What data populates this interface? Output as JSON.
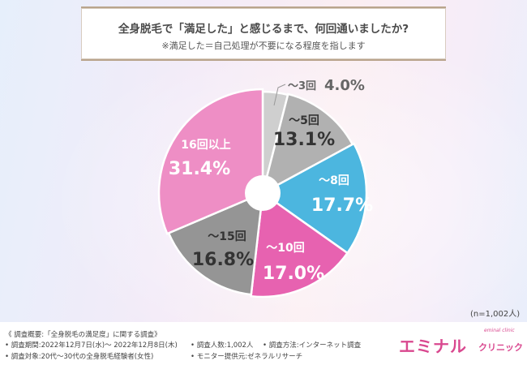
{
  "header": {
    "title": "全身脱毛で「満足した」と感じるまで、何回通いましたか?",
    "subtitle": "※満足した＝自己処理が不要になる程度を指します"
  },
  "chart_data": {
    "type": "pie",
    "donut_hole": true,
    "start_angle_deg": 0,
    "direction": "clockwise",
    "slices": [
      {
        "label": "〜3回",
        "value": 4.0,
        "value_text": "4.0%",
        "color": "#cfcfcf",
        "text_color": "#555555"
      },
      {
        "label": "〜5回",
        "value": 13.1,
        "value_text": "13.1%",
        "color": "#b1b1b1",
        "text_color": "#333333"
      },
      {
        "label": "〜8回",
        "value": 17.7,
        "value_text": "17.7%",
        "color": "#4cb6df",
        "text_color": "#ffffff"
      },
      {
        "label": "〜10回",
        "value": 17.0,
        "value_text": "17.0%",
        "color": "#e762b0",
        "text_color": "#ffffff"
      },
      {
        "label": "〜15回",
        "value": 16.8,
        "value_text": "16.8%",
        "color": "#959595",
        "text_color": "#333333"
      },
      {
        "label": "16回以上",
        "value": 31.4,
        "value_text": "31.4%",
        "color": "#ee8ec5",
        "text_color": "#ffffff"
      }
    ]
  },
  "sample_size": "(n=1,002人)",
  "footer": {
    "heading": "《 調査概要:「全身脱毛の満足度」に関する調査》",
    "period": "• 調査期間:2022年12月7日(水)〜 2022年12月8日(木)",
    "subjects": "• 調査対象:20代〜30代の全身脱毛経験者(女性)",
    "count": "• 調査人数:1,002人",
    "method": "• 調査方法:インターネット調査",
    "provider": "• モニター提供元:ゼネラルリサーチ"
  },
  "logo": {
    "main": "エミナル",
    "sub": "クリニック",
    "small": "eminal clinic"
  }
}
